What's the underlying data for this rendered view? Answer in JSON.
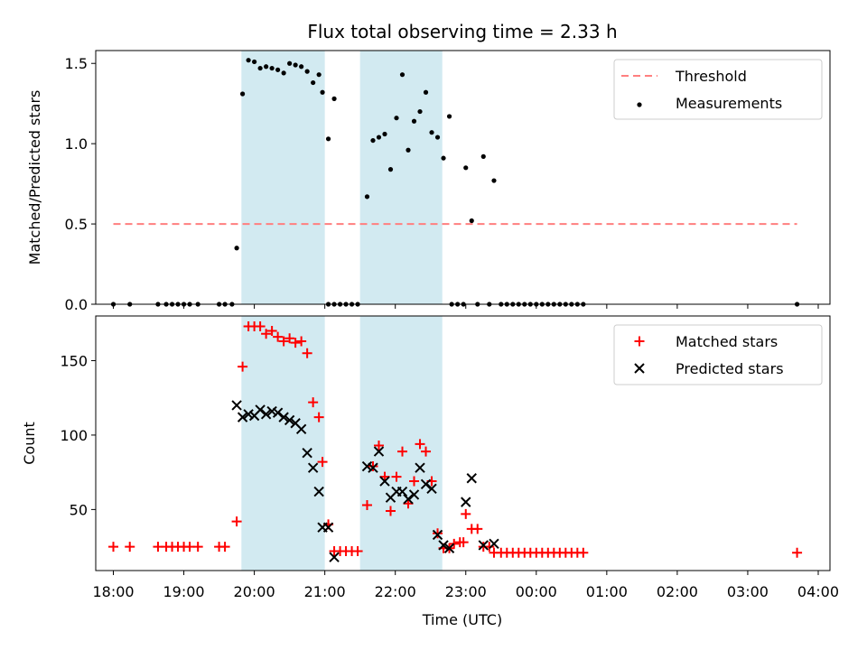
{
  "chart_data": {
    "title": "Flux total observing time = 2.33 h",
    "colors": {
      "threshold": "#ff7f7f",
      "measurement": "#000000",
      "matched": "#ff0000",
      "predicted": "#000000",
      "shade": "#add8e6"
    },
    "shaded_intervals": [
      [
        "19:49",
        "21:00"
      ],
      [
        "21:30",
        "22:40"
      ]
    ],
    "xaxis": {
      "label": "Time (UTC)",
      "ticks": [
        "18:00",
        "19:00",
        "20:00",
        "21:00",
        "22:00",
        "23:00",
        "00:00",
        "01:00",
        "02:00",
        "03:00",
        "04:00"
      ],
      "range": [
        "17:45",
        "04:10"
      ]
    },
    "panels": [
      {
        "type": "scatter",
        "ylabel": "Matched/Predicted stars",
        "ylim": [
          0,
          1.58
        ],
        "yticks": [
          "0.0",
          "0.5",
          "1.0",
          "1.5"
        ],
        "legend": {
          "placement": "top-right",
          "entries": [
            "Threshold",
            "Measurements"
          ]
        },
        "threshold": {
          "name": "Threshold",
          "value": 0.5,
          "x_start": "18:00",
          "x_end": "03:42"
        },
        "series": [
          {
            "name": "Measurements",
            "marker": "dot",
            "points": [
              [
                "18:00",
                0
              ],
              [
                "18:14",
                0
              ],
              [
                "18:38",
                0
              ],
              [
                "18:45",
                0
              ],
              [
                "18:50",
                0
              ],
              [
                "18:55",
                0
              ],
              [
                "19:00",
                0
              ],
              [
                "19:05",
                0
              ],
              [
                "19:12",
                0
              ],
              [
                "19:30",
                0
              ],
              [
                "19:35",
                0
              ],
              [
                "19:41",
                0
              ],
              [
                "19:45",
                0.35
              ],
              [
                "19:50",
                1.31
              ],
              [
                "19:55",
                1.52
              ],
              [
                "20:00",
                1.51
              ],
              [
                "20:05",
                1.47
              ],
              [
                "20:10",
                1.48
              ],
              [
                "20:15",
                1.47
              ],
              [
                "20:20",
                1.46
              ],
              [
                "20:25",
                1.44
              ],
              [
                "20:30",
                1.5
              ],
              [
                "20:35",
                1.49
              ],
              [
                "20:40",
                1.48
              ],
              [
                "20:45",
                1.45
              ],
              [
                "20:50",
                1.38
              ],
              [
                "20:55",
                1.43
              ],
              [
                "20:58",
                1.32
              ],
              [
                "21:03",
                1.03
              ],
              [
                "21:08",
                1.28
              ],
              [
                "21:03",
                0
              ],
              [
                "21:08",
                0
              ],
              [
                "21:13",
                0
              ],
              [
                "21:18",
                0
              ],
              [
                "21:23",
                0
              ],
              [
                "21:28",
                0
              ],
              [
                "21:36",
                0.67
              ],
              [
                "21:41",
                1.02
              ],
              [
                "21:46",
                1.04
              ],
              [
                "21:51",
                1.06
              ],
              [
                "21:56",
                0.84
              ],
              [
                "22:01",
                1.16
              ],
              [
                "22:06",
                1.43
              ],
              [
                "22:11",
                0.96
              ],
              [
                "22:16",
                1.14
              ],
              [
                "22:21",
                1.2
              ],
              [
                "22:26",
                1.32
              ],
              [
                "22:31",
                1.07
              ],
              [
                "22:36",
                1.04
              ],
              [
                "22:41",
                0.91
              ],
              [
                "22:46",
                1.17
              ],
              [
                "22:48",
                0
              ],
              [
                "22:53",
                0
              ],
              [
                "22:58",
                0
              ],
              [
                "23:00",
                0.85
              ],
              [
                "23:05",
                0.52
              ],
              [
                "23:15",
                0.92
              ],
              [
                "23:24",
                0.77
              ],
              [
                "23:10",
                0
              ],
              [
                "23:20",
                0
              ],
              [
                "23:30",
                0
              ],
              [
                "23:35",
                0
              ],
              [
                "23:40",
                0
              ],
              [
                "23:45",
                0
              ],
              [
                "23:50",
                0
              ],
              [
                "23:55",
                0
              ],
              [
                "00:00",
                0
              ],
              [
                "00:05",
                0
              ],
              [
                "00:10",
                0
              ],
              [
                "00:15",
                0
              ],
              [
                "00:20",
                0
              ],
              [
                "00:25",
                0
              ],
              [
                "00:30",
                0
              ],
              [
                "00:35",
                0
              ],
              [
                "00:40",
                0
              ],
              [
                "03:42",
                0
              ]
            ]
          }
        ]
      },
      {
        "type": "scatter",
        "ylabel": "Count",
        "ylim": [
          9,
          180
        ],
        "yticks": [
          "50",
          "100",
          "150"
        ],
        "legend": {
          "placement": "top-right",
          "entries": [
            "Matched stars",
            "Predicted stars"
          ]
        },
        "series": [
          {
            "name": "Matched stars",
            "marker": "plus",
            "points": [
              [
                "18:00",
                25
              ],
              [
                "18:14",
                25
              ],
              [
                "18:38",
                25
              ],
              [
                "18:45",
                25
              ],
              [
                "18:50",
                25
              ],
              [
                "18:55",
                25
              ],
              [
                "19:00",
                25
              ],
              [
                "19:05",
                25
              ],
              [
                "19:12",
                25
              ],
              [
                "19:30",
                25
              ],
              [
                "19:35",
                25
              ],
              [
                "19:45",
                42
              ],
              [
                "19:50",
                146
              ],
              [
                "19:55",
                173
              ],
              [
                "20:00",
                173
              ],
              [
                "20:05",
                173
              ],
              [
                "20:10",
                168
              ],
              [
                "20:15",
                170
              ],
              [
                "20:20",
                166
              ],
              [
                "20:25",
                163
              ],
              [
                "20:30",
                165
              ],
              [
                "20:35",
                162
              ],
              [
                "20:40",
                163
              ],
              [
                "20:45",
                155
              ],
              [
                "20:50",
                122
              ],
              [
                "20:55",
                112
              ],
              [
                "20:58",
                82
              ],
              [
                "21:03",
                40
              ],
              [
                "21:08",
                22
              ],
              [
                "21:13",
                22
              ],
              [
                "21:18",
                22
              ],
              [
                "21:23",
                22
              ],
              [
                "21:28",
                22
              ],
              [
                "21:36",
                53
              ],
              [
                "21:41",
                79
              ],
              [
                "21:46",
                93
              ],
              [
                "21:51",
                72
              ],
              [
                "21:56",
                49
              ],
              [
                "22:01",
                72
              ],
              [
                "22:06",
                89
              ],
              [
                "22:11",
                54
              ],
              [
                "22:16",
                69
              ],
              [
                "22:21",
                94
              ],
              [
                "22:26",
                89
              ],
              [
                "22:31",
                69
              ],
              [
                "22:36",
                34
              ],
              [
                "22:41",
                24
              ],
              [
                "22:46",
                24
              ],
              [
                "22:50",
                27
              ],
              [
                "22:55",
                28
              ],
              [
                "22:58",
                28
              ],
              [
                "23:00",
                47
              ],
              [
                "23:05",
                37
              ],
              [
                "23:10",
                37
              ],
              [
                "23:15",
                25
              ],
              [
                "23:20",
                25
              ],
              [
                "23:24",
                21
              ],
              [
                "23:30",
                21
              ],
              [
                "23:35",
                21
              ],
              [
                "23:40",
                21
              ],
              [
                "23:45",
                21
              ],
              [
                "23:50",
                21
              ],
              [
                "23:55",
                21
              ],
              [
                "00:00",
                21
              ],
              [
                "00:05",
                21
              ],
              [
                "00:10",
                21
              ],
              [
                "00:15",
                21
              ],
              [
                "00:20",
                21
              ],
              [
                "00:25",
                21
              ],
              [
                "00:30",
                21
              ],
              [
                "00:35",
                21
              ],
              [
                "00:40",
                21
              ],
              [
                "03:42",
                21
              ]
            ]
          },
          {
            "name": "Predicted stars",
            "marker": "x",
            "points": [
              [
                "19:45",
                120
              ],
              [
                "19:50",
                112
              ],
              [
                "19:55",
                114
              ],
              [
                "20:00",
                113
              ],
              [
                "20:05",
                117
              ],
              [
                "20:10",
                114
              ],
              [
                "20:15",
                116
              ],
              [
                "20:20",
                115
              ],
              [
                "20:25",
                112
              ],
              [
                "20:30",
                110
              ],
              [
                "20:35",
                108
              ],
              [
                "20:40",
                104
              ],
              [
                "20:45",
                88
              ],
              [
                "20:50",
                78
              ],
              [
                "20:55",
                62
              ],
              [
                "20:58",
                38
              ],
              [
                "21:03",
                38
              ],
              [
                "21:08",
                18
              ],
              [
                "21:36",
                79
              ],
              [
                "21:41",
                78
              ],
              [
                "21:46",
                89
              ],
              [
                "21:51",
                69
              ],
              [
                "21:56",
                58
              ],
              [
                "22:01",
                62
              ],
              [
                "22:06",
                62
              ],
              [
                "22:11",
                57
              ],
              [
                "22:16",
                60
              ],
              [
                "22:21",
                78
              ],
              [
                "22:26",
                67
              ],
              [
                "22:31",
                64
              ],
              [
                "22:36",
                33
              ],
              [
                "22:41",
                26
              ],
              [
                "22:46",
                24
              ],
              [
                "23:00",
                55
              ],
              [
                "23:05",
                71
              ],
              [
                "23:15",
                26
              ],
              [
                "23:24",
                27
              ]
            ]
          }
        ]
      }
    ]
  }
}
